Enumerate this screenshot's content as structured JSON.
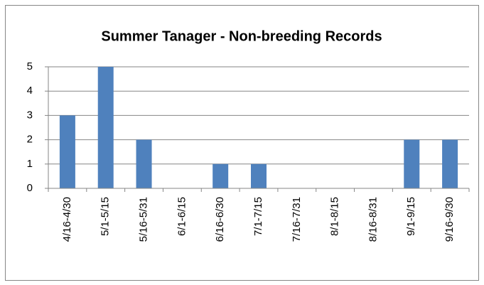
{
  "chart_data": {
    "type": "bar",
    "title": "Summer Tanager - Non-breeding Records",
    "categories": [
      "4/16-4/30",
      "5/1-5/15",
      "5/16-5/31",
      "6/1-6/15",
      "6/16-6/30",
      "7/1-7/15",
      "7/16-7/31",
      "8/1-8/15",
      "8/16-8/31",
      "9/1-9/15",
      "9/16-9/30"
    ],
    "values": [
      3,
      5,
      2,
      0,
      1,
      1,
      0,
      0,
      0,
      2,
      2
    ],
    "color": "#4f81bd",
    "ylim": [
      0,
      5
    ],
    "yticks": [
      0,
      1,
      2,
      3,
      4,
      5
    ],
    "grid": true
  }
}
